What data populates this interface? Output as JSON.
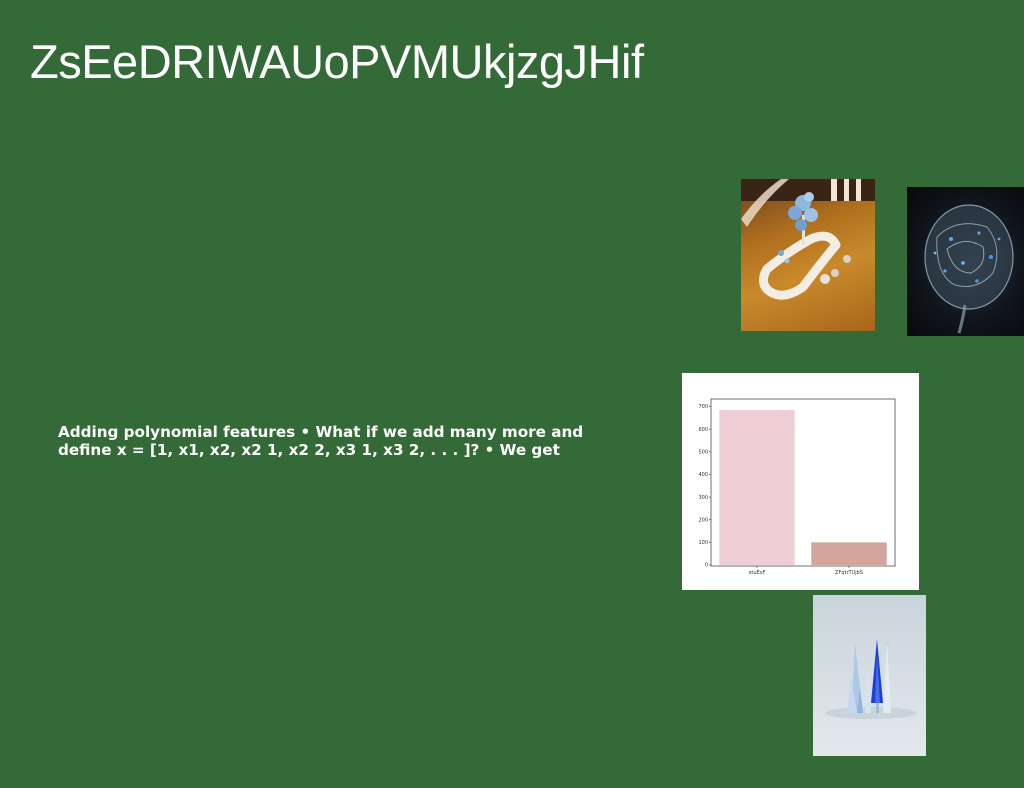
{
  "slide": {
    "title": "ZsEeDRIWAUoPVMUkjzgJHif",
    "body": "Adding polynomial features • What if we add many more and define x = [1, x1, x2, x2 1, x2 2, x3 1, x3 2, . . . ]? • We get"
  },
  "colors": {
    "background": "#346a37",
    "text": "#ffffff"
  },
  "chart_data": {
    "type": "bar",
    "categories": [
      "xtuExF",
      "ZFqtrTUjbS"
    ],
    "values": [
      685,
      100
    ],
    "colors": [
      "#efcfd6",
      "#d2a69b"
    ],
    "yticks": [
      0,
      100,
      200,
      300,
      400,
      500,
      600,
      700
    ],
    "ylim": [
      0,
      720
    ],
    "title": "",
    "xlabel": "",
    "ylabel": "",
    "grid": false,
    "legend": "none"
  }
}
